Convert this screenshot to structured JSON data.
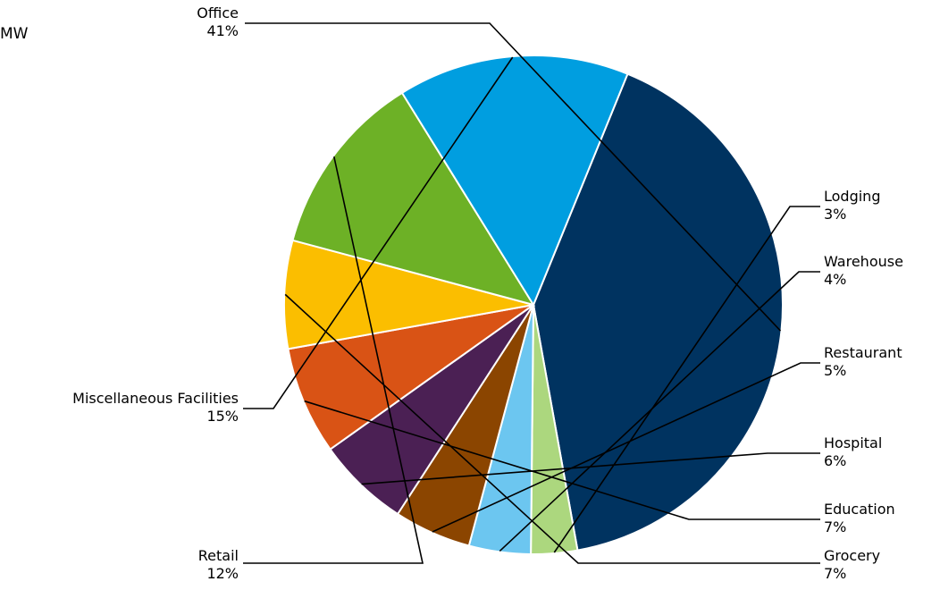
{
  "corner_text": "MW",
  "chart_data": {
    "type": "pie",
    "title": "",
    "slices": [
      {
        "label": "Office",
        "value": 41,
        "value_label": "41%",
        "color": "#003360"
      },
      {
        "label": "Lodging",
        "value": 3,
        "value_label": "3%",
        "color": "#acd77e"
      },
      {
        "label": "Warehouse",
        "value": 4,
        "value_label": "4%",
        "color": "#6cc6f0"
      },
      {
        "label": "Restaurant",
        "value": 5,
        "value_label": "5%",
        "color": "#8b4500"
      },
      {
        "label": "Hospital",
        "value": 6,
        "value_label": "6%",
        "color": "#4b2054"
      },
      {
        "label": "Education",
        "value": 7,
        "value_label": "7%",
        "color": "#d95315"
      },
      {
        "label": "Grocery",
        "value": 7,
        "value_label": "7%",
        "color": "#fbbe00"
      },
      {
        "label": "Retail",
        "value": 12,
        "value_label": "12%",
        "color": "#6db126"
      },
      {
        "label": "Miscellaneous Facilities",
        "value": 15,
        "value_label": "15%",
        "color": "#009ee0"
      }
    ]
  }
}
